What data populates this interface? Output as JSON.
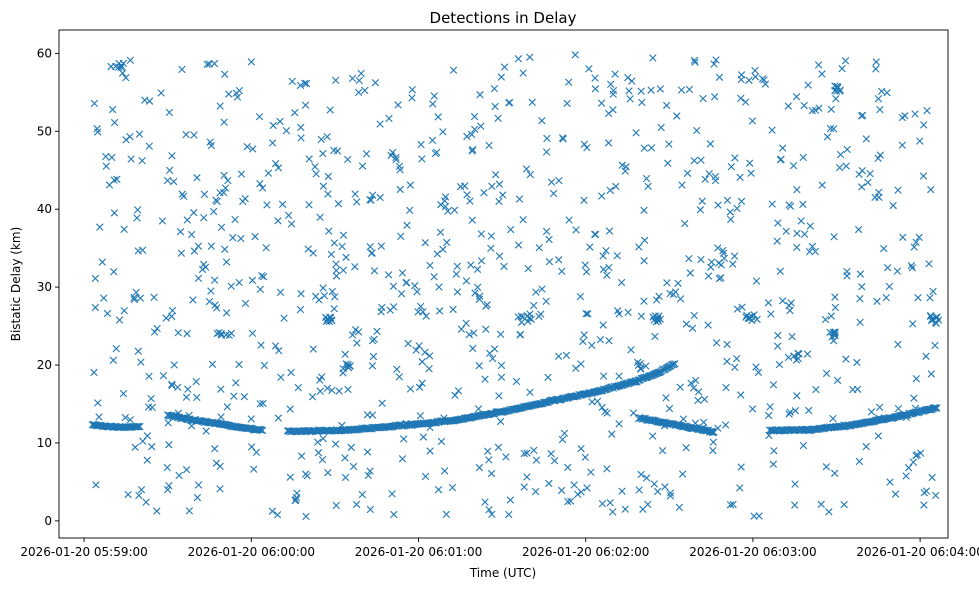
{
  "chart_data": {
    "type": "scatter",
    "title": "Detections in Delay",
    "xlabel": "Time (UTC)",
    "ylabel": "Bistatic Delay (km)",
    "marker": "x",
    "color": "#1f77b4",
    "xlim": [
      "2026-01-20 05:58:51",
      "2026-01-20 06:04:10"
    ],
    "ylim": [
      -2.2,
      63.0
    ],
    "x_ticks": [
      "2026-01-20 05:59:00",
      "2026-01-20 06:00:00",
      "2026-01-20 06:01:00",
      "2026-01-20 06:02:00",
      "2026-01-20 06:03:00",
      "2026-01-20 06:04:00"
    ],
    "y_ticks": [
      0,
      10,
      20,
      30,
      40,
      50,
      60
    ],
    "grid": false,
    "track": {
      "description": "dense line of detections",
      "segments": [
        {
          "x_start": "2026-01-20 05:59:03",
          "x_end": "2026-01-20 05:59:20",
          "points": [
            [
              0,
              12.3
            ],
            [
              6,
              12.1
            ],
            [
              12,
              12.0
            ],
            [
              17,
              12.1
            ]
          ]
        },
        {
          "x_start": "2026-01-20 05:59:30",
          "x_end": "2026-01-20 06:00:04",
          "points": [
            [
              0,
              13.6
            ],
            [
              8,
              13.0
            ],
            [
              16,
              12.6
            ],
            [
              24,
              12.1
            ],
            [
              34,
              11.6
            ]
          ]
        },
        {
          "x_start": "2026-01-20 06:00:13",
          "x_end": "2026-01-20 06:02:18",
          "points": [
            [
              0,
              11.5
            ],
            [
              20,
              11.6
            ],
            [
              40,
              12.2
            ],
            [
              60,
              12.9
            ],
            [
              80,
              14.2
            ],
            [
              95,
              15.4
            ],
            [
              110,
              16.5
            ],
            [
              125,
              17.9
            ]
          ]
        },
        {
          "x_start": "2026-01-20 06:02:18",
          "x_end": "2026-01-20 06:02:32",
          "points": [
            [
              0,
              17.9
            ],
            [
              8,
              19.0
            ],
            [
              14,
              20.2
            ]
          ]
        },
        {
          "x_start": "2026-01-20 06:02:19",
          "x_end": "2026-01-20 06:02:46",
          "points": [
            [
              0,
              13.2
            ],
            [
              9,
              12.6
            ],
            [
              18,
              12.0
            ],
            [
              27,
              11.4
            ]
          ]
        },
        {
          "x_start": "2026-01-20 06:03:06",
          "x_end": "2026-01-20 06:04:06",
          "points": [
            [
              0,
              11.6
            ],
            [
              15,
              11.7
            ],
            [
              30,
              12.3
            ],
            [
              45,
              13.3
            ],
            [
              60,
              14.5
            ]
          ]
        }
      ]
    },
    "clusters": [
      {
        "x": "2026-01-20 06:00:28",
        "y": 26.0,
        "count": 9
      },
      {
        "x": "2026-01-20 06:01:38",
        "y": 26.0,
        "count": 9
      },
      {
        "x": "2026-01-20 06:02:25",
        "y": 26.0,
        "count": 9
      },
      {
        "x": "2026-01-20 06:02:59",
        "y": 26.0,
        "count": 9
      },
      {
        "x": "2026-01-20 06:03:29",
        "y": 24.0,
        "count": 9
      },
      {
        "x": "2026-01-20 06:04:05",
        "y": 26.0,
        "count": 9
      },
      {
        "x": "2026-01-20 06:00:34",
        "y": 20.0,
        "count": 7
      },
      {
        "x": "2026-01-20 06:02:20",
        "y": 20.0,
        "count": 6
      },
      {
        "x": "2026-01-20 05:59:50",
        "y": 24.0,
        "count": 7
      },
      {
        "x": "2026-01-20 06:03:15",
        "y": 21.0,
        "count": 6
      },
      {
        "x": "2026-01-20 06:03:30",
        "y": 55.5,
        "count": 8
      },
      {
        "x": "2026-01-20 05:59:12",
        "y": 58.5,
        "count": 7
      }
    ],
    "background_noise": {
      "description": "scattered uniform false detections",
      "count": 950,
      "x_range": [
        "2026-01-20 05:59:03",
        "2026-01-20 06:04:06"
      ],
      "y_range": [
        0.5,
        60.0
      ]
    }
  }
}
